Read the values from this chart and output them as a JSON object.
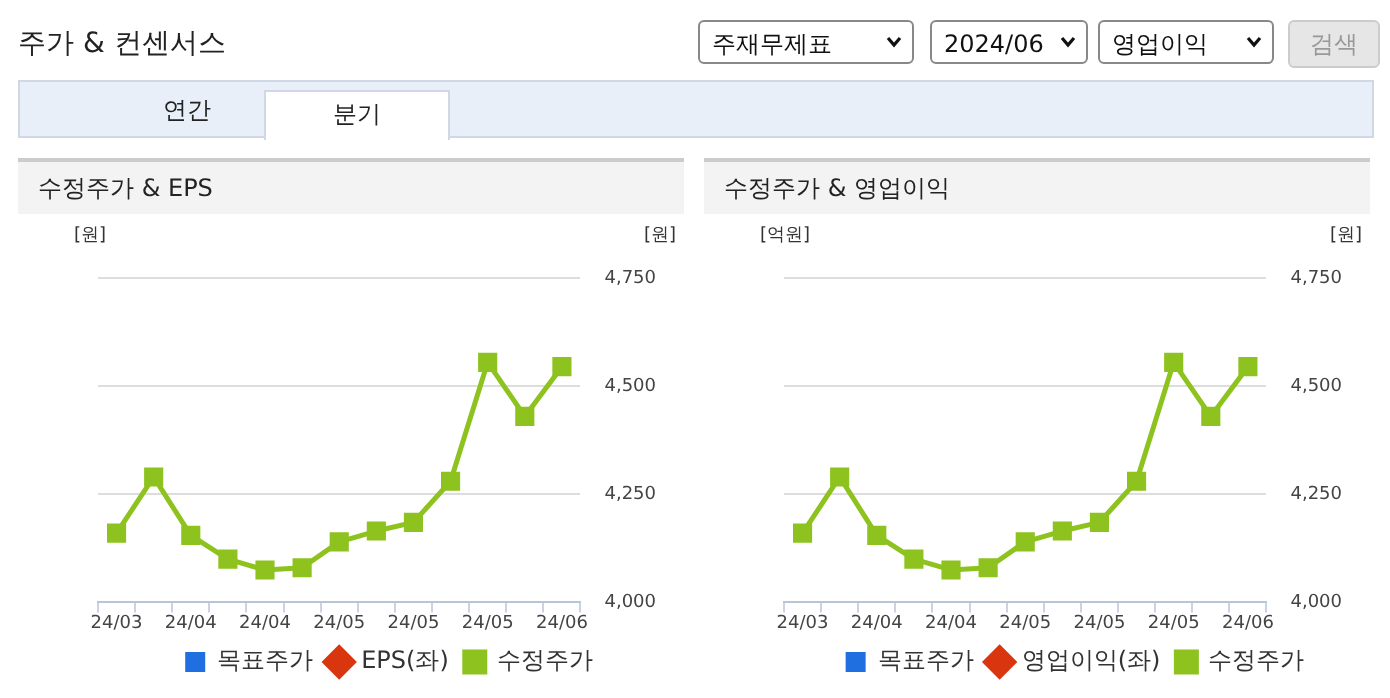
{
  "chart_data": [
    {
      "type": "other",
      "title": "주가 & 컨센서스",
      "annotations": [
        "주재무제표",
        "2024/06",
        "영업이익",
        "검색",
        "연간",
        "분기"
      ]
    },
    {
      "type": "line",
      "title": "수정주가 & EPS",
      "ylabel": "[원]",
      "y2label": "[원]",
      "categories": [
        "24/03",
        null,
        "24/04",
        null,
        "24/04",
        null,
        "24/05",
        null,
        "24/05",
        null,
        "24/05",
        null,
        "24/06"
      ],
      "y2lim": [
        4000,
        4750
      ],
      "y2ticks": [
        {
          "value": 4000,
          "label": "4,000"
        },
        {
          "value": 4250,
          "label": "4,250"
        },
        {
          "value": 4500,
          "label": "4,500"
        },
        {
          "value": 4750,
          "label": "4,750"
        }
      ],
      "grid": "y",
      "legend": "bottom",
      "series": [
        {
          "name": "목표주가",
          "type": "bar",
          "color": "#1f6fe0",
          "values": [
            null,
            null,
            null,
            null,
            null,
            null,
            null,
            null,
            null,
            null,
            null,
            null,
            null
          ]
        },
        {
          "name": "EPS(좌)",
          "type": "line",
          "marker": "diamond",
          "color": "#d9350f",
          "values": [
            null,
            null,
            null,
            null,
            null,
            null,
            null,
            null,
            null,
            null,
            null,
            null,
            null
          ]
        },
        {
          "name": "수정주가",
          "type": "line",
          "marker": "square",
          "axis": "y2",
          "color": "#8dc21f",
          "values": [
            4160,
            4290,
            4155,
            4100,
            4075,
            4080,
            4140,
            4165,
            4185,
            4280,
            4555,
            4430,
            4545
          ]
        }
      ]
    },
    {
      "type": "line",
      "title": "수정주가 & 영업이익",
      "ylabel": "[억원]",
      "y2label": "[원]",
      "categories": [
        "24/03",
        null,
        "24/04",
        null,
        "24/04",
        null,
        "24/05",
        null,
        "24/05",
        null,
        "24/05",
        null,
        "24/06"
      ],
      "y2lim": [
        4000,
        4750
      ],
      "y2ticks": [
        {
          "value": 4000,
          "label": "4,000"
        },
        {
          "value": 4250,
          "label": "4,250"
        },
        {
          "value": 4500,
          "label": "4,500"
        },
        {
          "value": 4750,
          "label": "4,750"
        }
      ],
      "grid": "y",
      "legend": "bottom",
      "series": [
        {
          "name": "목표주가",
          "type": "bar",
          "color": "#1f6fe0",
          "values": [
            null,
            null,
            null,
            null,
            null,
            null,
            null,
            null,
            null,
            null,
            null,
            null,
            null
          ]
        },
        {
          "name": "영업이익(좌)",
          "type": "line",
          "marker": "diamond",
          "color": "#d9350f",
          "values": [
            null,
            null,
            null,
            null,
            null,
            null,
            null,
            null,
            null,
            null,
            null,
            null,
            null
          ]
        },
        {
          "name": "수정주가",
          "type": "line",
          "marker": "square",
          "axis": "y2",
          "color": "#8dc21f",
          "values": [
            4160,
            4290,
            4155,
            4100,
            4075,
            4080,
            4140,
            4165,
            4185,
            4280,
            4555,
            4430,
            4545
          ]
        }
      ]
    }
  ]
}
